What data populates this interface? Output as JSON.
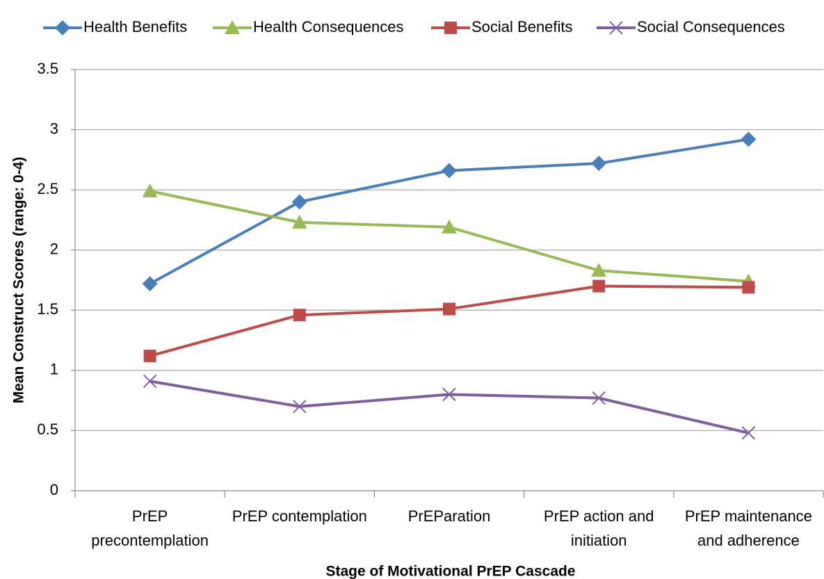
{
  "chart_data": {
    "type": "line",
    "x_label": "Stage of Motivational PrEP Cascade",
    "y_label": "Mean Construct Scores (range: 0-4)",
    "categories": [
      "PrEP\nprecontemplation",
      "PrEP contemplation",
      "PrEParation",
      "PrEP action and\ninitiation",
      "PrEP maintenance\nand adherence"
    ],
    "series": [
      {
        "name": "Health Benefits",
        "color": "#4a7ebb",
        "marker": "diamond",
        "values": [
          1.72,
          2.4,
          2.66,
          2.72,
          2.92
        ]
      },
      {
        "name": "Health Consequences",
        "color": "#98b954",
        "marker": "triangle",
        "values": [
          2.49,
          2.23,
          2.19,
          1.83,
          1.74
        ]
      },
      {
        "name": "Social Benefits",
        "color": "#be4b48",
        "marker": "square",
        "values": [
          1.12,
          1.46,
          1.51,
          1.7,
          1.69
        ]
      },
      {
        "name": "Social Consequences",
        "color": "#7d5fa0",
        "marker": "x",
        "values": [
          0.91,
          0.7,
          0.8,
          0.77,
          0.48
        ]
      }
    ],
    "ylim": [
      0,
      3.5
    ],
    "yticks": [
      0,
      0.5,
      1,
      1.5,
      2,
      2.5,
      3,
      3.5
    ],
    "grid": true,
    "legend": "top"
  }
}
